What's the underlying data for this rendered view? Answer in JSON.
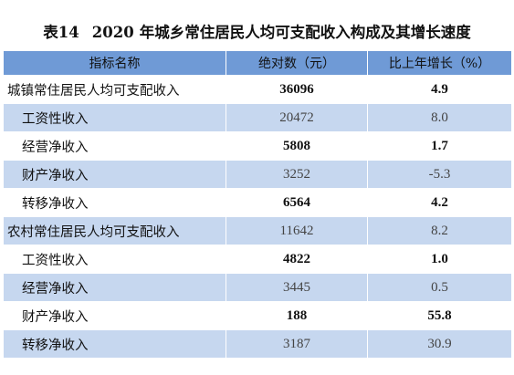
{
  "caption": {
    "prefix": "表14",
    "year": "2020",
    "title": "年城乡常住居民人均可支配收入构成及其增长速度"
  },
  "table": {
    "headers": [
      "指标名称",
      "绝对数（元）",
      "比上年增长（%）"
    ],
    "rows": [
      {
        "name": "城镇常住居民人均可支配收入",
        "value": "36096",
        "growth": "4.9"
      },
      {
        "name": "工资性收入",
        "value": "20472",
        "growth": "8.0"
      },
      {
        "name": "经营净收入",
        "value": "5808",
        "growth": "1.7"
      },
      {
        "name": "财产净收入",
        "value": "3252",
        "growth": "-5.3"
      },
      {
        "name": "转移净收入",
        "value": "6564",
        "growth": "4.2"
      },
      {
        "name": "农村常住居民人均可支配收入",
        "value": "11642",
        "growth": "8.2"
      },
      {
        "name": "工资性收入",
        "value": "4822",
        "growth": "1.0"
      },
      {
        "name": "经营净收入",
        "value": "3445",
        "growth": "0.5"
      },
      {
        "name": "财产净收入",
        "value": "188",
        "growth": "55.8"
      },
      {
        "name": "转移净收入",
        "value": "3187",
        "growth": "30.9"
      }
    ]
  }
}
